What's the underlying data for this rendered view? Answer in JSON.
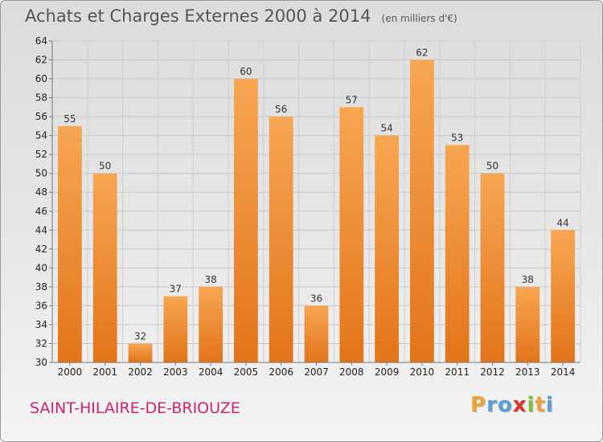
{
  "title": "Achats et Charges Externes 2000 à 2014",
  "unit_note": "(en milliers d'€)",
  "commune": "SAINT-HILAIRE-DE-BRIOUZE",
  "logo": {
    "letters": [
      "P",
      "r",
      "o",
      "x",
      "i",
      "t",
      "i"
    ],
    "colors": [
      "#e8a33d",
      "#5a9fd6",
      "#5a9fd6",
      "#d43a2f",
      "#7bbf3a",
      "#e8a33d",
      "#5a9fd6"
    ]
  },
  "chart_data": {
    "type": "bar",
    "categories": [
      "2000",
      "2001",
      "2002",
      "2003",
      "2004",
      "2005",
      "2006",
      "2007",
      "2008",
      "2009",
      "2010",
      "2011",
      "2012",
      "2013",
      "2014"
    ],
    "values": [
      55,
      50,
      32,
      37,
      38,
      60,
      56,
      36,
      57,
      54,
      62,
      53,
      50,
      38,
      44
    ],
    "title": "Achats et Charges Externes 2000 à 2014",
    "ylabel": "",
    "xlabel": "",
    "ylim": [
      30,
      64
    ],
    "yticks": [
      30,
      32,
      34,
      36,
      38,
      40,
      42,
      44,
      46,
      48,
      50,
      52,
      54,
      56,
      58,
      60,
      62,
      64
    ],
    "grid": true,
    "bar_color": "#f0923e"
  }
}
